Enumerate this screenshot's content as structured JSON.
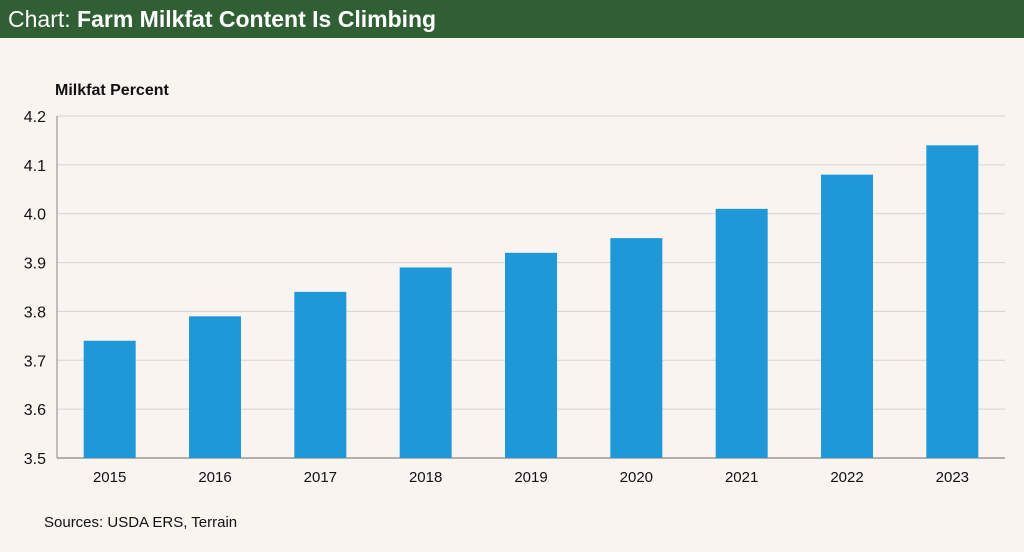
{
  "header": {
    "prefix": "Chart: ",
    "title": "Farm Milkfat Content Is Climbing"
  },
  "colors": {
    "header_bg": "#2f5f32",
    "bar": "#1e98d6",
    "background": "#f9f4f0",
    "grid": "#d4d4d4"
  },
  "chart_data": {
    "type": "bar",
    "title": "Farm Milkfat Content Is Climbing",
    "ylabel": "Milkfat Percent",
    "xlabel": "",
    "categories": [
      "2015",
      "2016",
      "2017",
      "2018",
      "2019",
      "2020",
      "2021",
      "2022",
      "2023"
    ],
    "values": [
      3.74,
      3.79,
      3.84,
      3.89,
      3.92,
      3.95,
      4.01,
      4.08,
      4.14
    ],
    "ylim": [
      3.5,
      4.2
    ],
    "yticks": [
      "3.5",
      "3.6",
      "3.7",
      "3.8",
      "3.9",
      "4.0",
      "4.1",
      "4.2"
    ],
    "grid": true,
    "legend": "none"
  },
  "footer": {
    "source": "Sources: USDA ERS, Terrain"
  }
}
